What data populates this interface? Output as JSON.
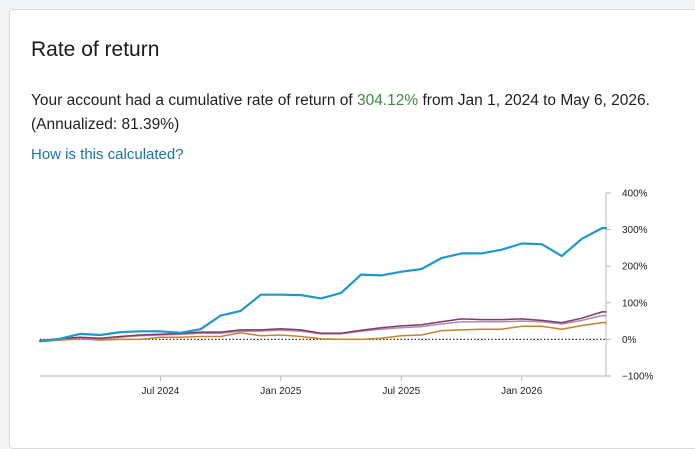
{
  "card": {
    "title": "Rate of return",
    "summary": {
      "prefix": "Your account had a cumulative rate of return of ",
      "rate": "304.12%",
      "middle": " from Jan 1, 2024 to May 6, 2026. (Annualized: ",
      "annualized": "81.39%",
      "suffix": ")"
    },
    "help_link": "How is this calculated?"
  },
  "colors": {
    "account": "#1f97c9",
    "benchmark_purple": "#7a3d67",
    "benchmark_violet": "#b08ab0",
    "benchmark_orange": "#c9822c",
    "positive_rate": "#3f8a3f",
    "link": "#1a73a8"
  },
  "chart_data": {
    "type": "line",
    "x_ticks": [
      "Jul 2024",
      "Jan 2025",
      "Jul 2025",
      "Jan 2026"
    ],
    "x_tick_months": [
      6,
      12,
      18,
      24
    ],
    "x_range": [
      0,
      28.2
    ],
    "y_ticks": [
      "400%",
      "300%",
      "200%",
      "100%",
      "0%",
      "−100%"
    ],
    "y_tick_values": [
      400,
      300,
      200,
      100,
      0,
      -100
    ],
    "ylim": [
      -100,
      400
    ],
    "zero_line": "dotted",
    "grid": false,
    "x": [
      0,
      1,
      2,
      3,
      4,
      5,
      6,
      7,
      8,
      9,
      10,
      11,
      12,
      13,
      14,
      15,
      16,
      17,
      18,
      19,
      20,
      21,
      22,
      23,
      24,
      25,
      26,
      27,
      28,
      28.2
    ],
    "series": [
      {
        "color": "#1f97c9",
        "values": [
          -5,
          2,
          15,
          12,
          20,
          22,
          22,
          18,
          28,
          65,
          78,
          122,
          122,
          121,
          112,
          127,
          177,
          175,
          185,
          192,
          222,
          235,
          235,
          245,
          262,
          260,
          228,
          275,
          304,
          304
        ]
      },
      {
        "color": "#7a3d67",
        "values": [
          -3,
          2,
          6,
          3,
          8,
          12,
          14,
          16,
          20,
          20,
          26,
          26,
          29,
          26,
          17,
          17,
          25,
          32,
          37,
          40,
          48,
          56,
          54,
          54,
          56,
          52,
          46,
          58,
          75,
          75
        ]
      },
      {
        "color": "#b08ab0",
        "values": [
          -4,
          1,
          4,
          2,
          6,
          10,
          12,
          14,
          17,
          17,
          22,
          23,
          25,
          22,
          15,
          15,
          22,
          28,
          32,
          35,
          42,
          48,
          48,
          48,
          50,
          48,
          42,
          52,
          65,
          65
        ]
      },
      {
        "color": "#c9822c",
        "values": [
          -6,
          -2,
          2,
          -2,
          0,
          0,
          6,
          6,
          8,
          8,
          18,
          10,
          12,
          8,
          2,
          0,
          0,
          3,
          10,
          12,
          24,
          26,
          28,
          28,
          36,
          36,
          28,
          38,
          46,
          46
        ]
      }
    ]
  }
}
